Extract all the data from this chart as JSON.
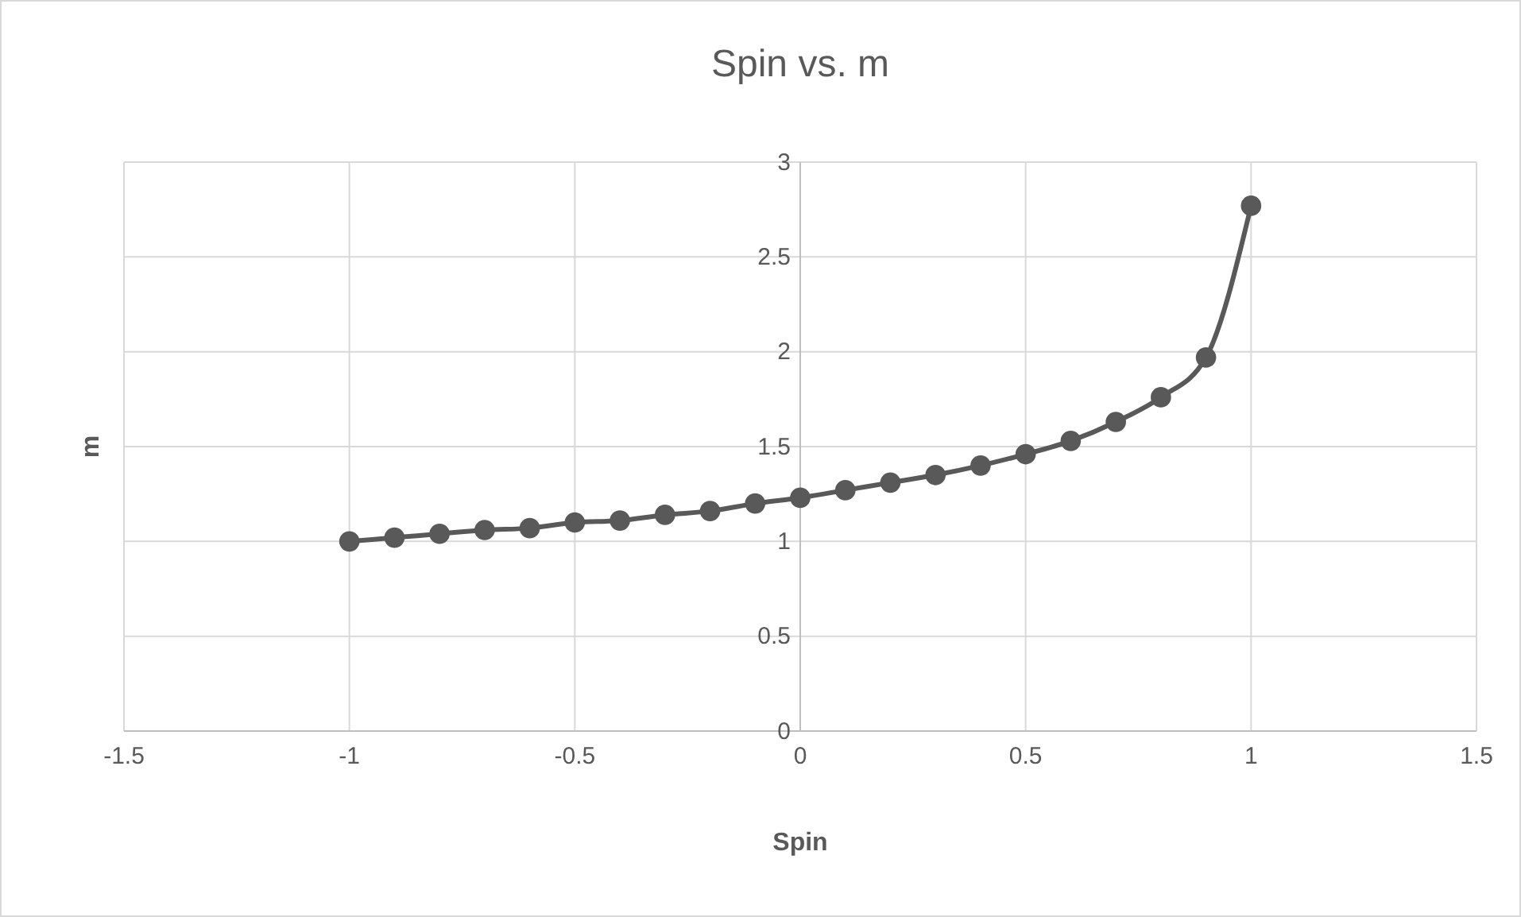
{
  "chart_data": {
    "type": "line",
    "title": "Spin vs. m",
    "xlabel": "Spin",
    "ylabel": "m",
    "x": [
      -1,
      -0.9,
      -0.8,
      -0.7,
      -0.6,
      -0.5,
      -0.4,
      -0.3,
      -0.2,
      -0.1,
      0,
      0.1,
      0.2,
      0.3,
      0.4,
      0.5,
      0.6,
      0.7,
      0.8,
      0.9,
      1
    ],
    "series": [
      {
        "color": "#595959",
        "values": [
          1.0,
          1.02,
          1.04,
          1.06,
          1.07,
          1.1,
          1.11,
          1.14,
          1.16,
          1.2,
          1.23,
          1.27,
          1.31,
          1.35,
          1.4,
          1.46,
          1.53,
          1.63,
          1.76,
          1.97,
          2.77
        ]
      }
    ],
    "xlim": [
      -1.5,
      1.5
    ],
    "xticks": [
      -1.5,
      -1,
      -0.5,
      0,
      0.5,
      1,
      1.5
    ],
    "ylim": [
      0,
      3
    ],
    "yticks": [
      0,
      0.5,
      1,
      1.5,
      2,
      2.5,
      3
    ],
    "grid": true,
    "marker": "circle",
    "line_style": "solid"
  }
}
